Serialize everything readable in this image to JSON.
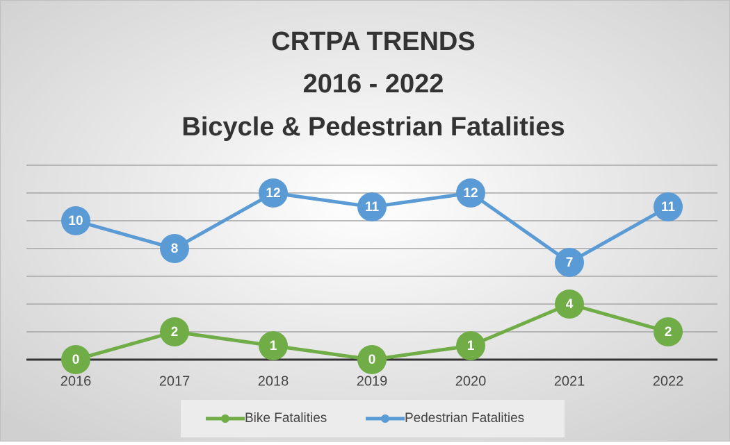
{
  "chart_data": {
    "type": "line",
    "title": [
      "CRTPA TRENDS",
      "2016 - 2022",
      "Bicycle & Pedestrian Fatalities"
    ],
    "categories": [
      "2016",
      "2017",
      "2018",
      "2019",
      "2020",
      "2021",
      "2022"
    ],
    "series": [
      {
        "name": "Bike Fatalities",
        "color": "#70ad47",
        "values": [
          0,
          2,
          1,
          0,
          1,
          4,
          2
        ]
      },
      {
        "name": "Pedestrian Fatalities",
        "color": "#5b9bd5",
        "values": [
          10,
          8,
          12,
          11,
          12,
          7,
          11
        ]
      }
    ],
    "ylim": [
      0,
      14
    ],
    "yticks": [
      0,
      2,
      4,
      6,
      8,
      10,
      12,
      14
    ],
    "grid": true,
    "legend": "bottom"
  }
}
